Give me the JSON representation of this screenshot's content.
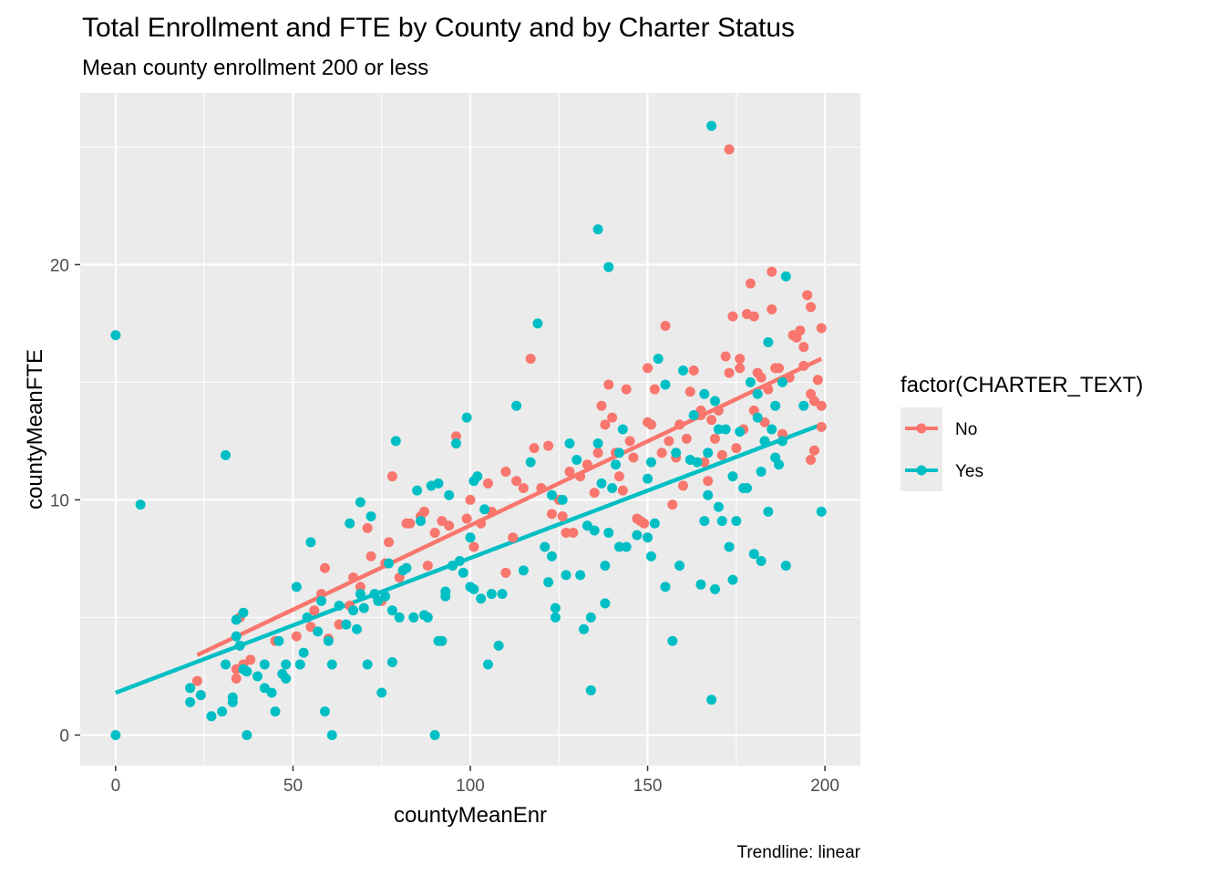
{
  "chart_data": {
    "type": "scatter",
    "title": "Total Enrollment and FTE by County and by Charter Status",
    "subtitle": "Mean county enrollment 200 or less",
    "xlabel": "countyMeanEnr",
    "ylabel": "countyMeanFTE",
    "caption": "Trendline: linear",
    "xlim": [
      -10,
      210
    ],
    "ylim": [
      -1.3,
      27.3
    ],
    "x_ticks": [
      0,
      50,
      100,
      150,
      200
    ],
    "y_ticks": [
      0,
      10,
      20
    ],
    "x_tick_labels": [
      "0",
      "50",
      "100",
      "150",
      "200"
    ],
    "y_tick_labels": [
      "0",
      "10",
      "20"
    ],
    "grid": true,
    "panel_background": "#ebebeb",
    "legend": {
      "title": "factor(CHARTER_TEXT)",
      "placement": "right"
    },
    "series": [
      {
        "name": "No",
        "color": "#f8766d",
        "trend": {
          "x": [
            23,
            199
          ],
          "y": [
            3.4,
            16.0
          ]
        },
        "points": [
          [
            23,
            2.3
          ],
          [
            24,
            1.7
          ],
          [
            34,
            2.8
          ],
          [
            34,
            2.4
          ],
          [
            35,
            5.0
          ],
          [
            36,
            3.0
          ],
          [
            38,
            3.2
          ],
          [
            45,
            4.0
          ],
          [
            51,
            4.2
          ],
          [
            55,
            4.6
          ],
          [
            56,
            5.3
          ],
          [
            58,
            6.0
          ],
          [
            59,
            7.1
          ],
          [
            60,
            4.1
          ],
          [
            63,
            4.7
          ],
          [
            66,
            5.5
          ],
          [
            67,
            6.7
          ],
          [
            69,
            6.3
          ],
          [
            71,
            8.8
          ],
          [
            72,
            7.6
          ],
          [
            75,
            5.7
          ],
          [
            76,
            7.3
          ],
          [
            77,
            8.2
          ],
          [
            78,
            11.0
          ],
          [
            80,
            6.7
          ],
          [
            82,
            9.0
          ],
          [
            83,
            9.0
          ],
          [
            86,
            9.3
          ],
          [
            87,
            9.5
          ],
          [
            88,
            7.2
          ],
          [
            90,
            8.6
          ],
          [
            92,
            9.1
          ],
          [
            94,
            8.9
          ],
          [
            96,
            12.7
          ],
          [
            99,
            9.2
          ],
          [
            100,
            10.0
          ],
          [
            101,
            8.0
          ],
          [
            103,
            9.0
          ],
          [
            105,
            10.7
          ],
          [
            106,
            9.5
          ],
          [
            110,
            11.2
          ],
          [
            110,
            6.9
          ],
          [
            112,
            8.4
          ],
          [
            113,
            10.8
          ],
          [
            115,
            10.5
          ],
          [
            117,
            16.0
          ],
          [
            118,
            12.2
          ],
          [
            120,
            10.5
          ],
          [
            122,
            12.3
          ],
          [
            123,
            9.4
          ],
          [
            125,
            10.0
          ],
          [
            126,
            9.3
          ],
          [
            127,
            8.6
          ],
          [
            128,
            11.2
          ],
          [
            129,
            8.6
          ],
          [
            131,
            11.0
          ],
          [
            133,
            11.5
          ],
          [
            135,
            10.3
          ],
          [
            136,
            12.0
          ],
          [
            137,
            14.0
          ],
          [
            138,
            13.2
          ],
          [
            139,
            14.9
          ],
          [
            140,
            13.5
          ],
          [
            141,
            12.0
          ],
          [
            142,
            11.0
          ],
          [
            143,
            10.4
          ],
          [
            144,
            14.7
          ],
          [
            145,
            12.5
          ],
          [
            146,
            11.8
          ],
          [
            147,
            9.2
          ],
          [
            148,
            9.1
          ],
          [
            149,
            9.0
          ],
          [
            150,
            15.6
          ],
          [
            151,
            13.2
          ],
          [
            152,
            14.7
          ],
          [
            154,
            12.0
          ],
          [
            155,
            17.4
          ],
          [
            156,
            12.5
          ],
          [
            157,
            9.8
          ],
          [
            158,
            11.8
          ],
          [
            159,
            13.2
          ],
          [
            160,
            10.6
          ],
          [
            161,
            12.6
          ],
          [
            162,
            14.6
          ],
          [
            163,
            15.5
          ],
          [
            164,
            13.6
          ],
          [
            165,
            13.8
          ],
          [
            166,
            11.6
          ],
          [
            167,
            10.8
          ],
          [
            168,
            13.4
          ],
          [
            169,
            12.6
          ],
          [
            170,
            13.8
          ],
          [
            171,
            11.9
          ],
          [
            172,
            16.1
          ],
          [
            173,
            15.4
          ],
          [
            174,
            17.8
          ],
          [
            175,
            12.2
          ],
          [
            176,
            15.6
          ],
          [
            177,
            13.0
          ],
          [
            178,
            17.9
          ],
          [
            179,
            19.2
          ],
          [
            180,
            13.8
          ],
          [
            181,
            15.4
          ],
          [
            182,
            15.2
          ],
          [
            183,
            13.3
          ],
          [
            184,
            14.7
          ],
          [
            185,
            18.1
          ],
          [
            186,
            15.6
          ],
          [
            187,
            15.6
          ],
          [
            188,
            12.8
          ],
          [
            190,
            15.2
          ],
          [
            191,
            17.0
          ],
          [
            192,
            16.9
          ],
          [
            193,
            17.2
          ],
          [
            194,
            15.7
          ],
          [
            195,
            18.7
          ],
          [
            196,
            14.5
          ],
          [
            197,
            14.2
          ],
          [
            198,
            15.1
          ],
          [
            199,
            14.0
          ],
          [
            199,
            17.3
          ],
          [
            199,
            13.1
          ],
          [
            173,
            24.9
          ],
          [
            185,
            19.7
          ],
          [
            194,
            16.5
          ],
          [
            196,
            18.2
          ],
          [
            197,
            12.1
          ],
          [
            196,
            11.7
          ],
          [
            180,
            17.8
          ],
          [
            176,
            16.0
          ],
          [
            150,
            13.3
          ],
          [
            165,
            13.6
          ]
        ]
      },
      {
        "name": "Yes",
        "color": "#00bfc4",
        "trend": {
          "x": [
            0,
            199
          ],
          "y": [
            1.8,
            13.2
          ]
        },
        "points": [
          [
            0,
            17.0
          ],
          [
            0,
            0.0
          ],
          [
            7,
            9.8
          ],
          [
            21,
            1.4
          ],
          [
            21,
            2.0
          ],
          [
            24,
            1.7
          ],
          [
            27,
            0.8
          ],
          [
            30,
            1.0
          ],
          [
            31,
            3.0
          ],
          [
            31,
            11.9
          ],
          [
            33,
            1.6
          ],
          [
            33,
            1.4
          ],
          [
            34,
            4.9
          ],
          [
            34,
            4.2
          ],
          [
            35,
            3.8
          ],
          [
            36,
            5.2
          ],
          [
            36,
            2.8
          ],
          [
            37,
            2.7
          ],
          [
            37,
            0.0
          ],
          [
            40,
            2.5
          ],
          [
            42,
            3.0
          ],
          [
            42,
            2.0
          ],
          [
            44,
            1.8
          ],
          [
            45,
            1.0
          ],
          [
            46,
            4.0
          ],
          [
            47,
            2.6
          ],
          [
            48,
            3.0
          ],
          [
            48,
            2.4
          ],
          [
            51,
            6.3
          ],
          [
            52,
            3.0
          ],
          [
            53,
            3.5
          ],
          [
            54,
            5.0
          ],
          [
            55,
            8.2
          ],
          [
            57,
            4.4
          ],
          [
            58,
            5.7
          ],
          [
            59,
            1.0
          ],
          [
            60,
            4.0
          ],
          [
            61,
            3.0
          ],
          [
            61,
            0.0
          ],
          [
            63,
            5.5
          ],
          [
            65,
            4.7
          ],
          [
            66,
            9.0
          ],
          [
            67,
            5.3
          ],
          [
            68,
            4.5
          ],
          [
            69,
            6.0
          ],
          [
            69,
            9.9
          ],
          [
            70,
            5.4
          ],
          [
            71,
            3.0
          ],
          [
            72,
            9.3
          ],
          [
            73,
            6.0
          ],
          [
            74,
            5.7
          ],
          [
            75,
            1.8
          ],
          [
            76,
            5.9
          ],
          [
            77,
            7.3
          ],
          [
            78,
            5.3
          ],
          [
            78,
            3.1
          ],
          [
            79,
            12.5
          ],
          [
            80,
            5.0
          ],
          [
            81,
            7.0
          ],
          [
            82,
            7.1
          ],
          [
            84,
            5.0
          ],
          [
            85,
            10.4
          ],
          [
            86,
            9.1
          ],
          [
            87,
            5.1
          ],
          [
            88,
            5.0
          ],
          [
            89,
            10.6
          ],
          [
            90,
            0.0
          ],
          [
            91,
            4.0
          ],
          [
            91,
            10.7
          ],
          [
            92,
            4.0
          ],
          [
            93,
            6.1
          ],
          [
            93,
            5.9
          ],
          [
            94,
            10.2
          ],
          [
            95,
            7.2
          ],
          [
            96,
            12.4
          ],
          [
            97,
            7.4
          ],
          [
            98,
            6.9
          ],
          [
            99,
            13.5
          ],
          [
            100,
            8.4
          ],
          [
            100,
            6.3
          ],
          [
            101,
            6.2
          ],
          [
            101,
            10.8
          ],
          [
            102,
            11.0
          ],
          [
            103,
            5.8
          ],
          [
            104,
            9.6
          ],
          [
            105,
            3.0
          ],
          [
            106,
            6.0
          ],
          [
            108,
            3.8
          ],
          [
            109,
            6.0
          ],
          [
            113,
            14.0
          ],
          [
            115,
            7.0
          ],
          [
            117,
            11.6
          ],
          [
            119,
            17.5
          ],
          [
            121,
            8.0
          ],
          [
            122,
            6.5
          ],
          [
            123,
            10.2
          ],
          [
            123,
            7.6
          ],
          [
            124,
            5.0
          ],
          [
            124,
            5.4
          ],
          [
            126,
            10.0
          ],
          [
            127,
            6.8
          ],
          [
            128,
            12.4
          ],
          [
            130,
            11.7
          ],
          [
            131,
            6.8
          ],
          [
            132,
            4.5
          ],
          [
            133,
            8.9
          ],
          [
            134,
            5.0
          ],
          [
            134,
            1.9
          ],
          [
            135,
            8.7
          ],
          [
            136,
            12.4
          ],
          [
            136,
            21.5
          ],
          [
            137,
            10.7
          ],
          [
            138,
            5.6
          ],
          [
            138,
            7.2
          ],
          [
            139,
            19.9
          ],
          [
            139,
            8.6
          ],
          [
            140,
            10.5
          ],
          [
            141,
            11.5
          ],
          [
            142,
            8.0
          ],
          [
            142,
            12.0
          ],
          [
            143,
            13.0
          ],
          [
            144,
            8.0
          ],
          [
            147,
            8.5
          ],
          [
            150,
            10.9
          ],
          [
            150,
            8.4
          ],
          [
            151,
            11.6
          ],
          [
            151,
            7.6
          ],
          [
            152,
            9.0
          ],
          [
            153,
            16.0
          ],
          [
            155,
            14.9
          ],
          [
            155,
            6.3
          ],
          [
            157,
            4.0
          ],
          [
            158,
            12.0
          ],
          [
            159,
            7.2
          ],
          [
            160,
            15.5
          ],
          [
            162,
            11.7
          ],
          [
            163,
            13.6
          ],
          [
            164,
            11.6
          ],
          [
            165,
            6.4
          ],
          [
            166,
            9.1
          ],
          [
            166,
            14.5
          ],
          [
            167,
            10.2
          ],
          [
            167,
            12.0
          ],
          [
            168,
            1.5
          ],
          [
            168,
            25.9
          ],
          [
            169,
            6.2
          ],
          [
            169,
            14.2
          ],
          [
            170,
            13.0
          ],
          [
            170,
            9.7
          ],
          [
            171,
            9.1
          ],
          [
            172,
            13.0
          ],
          [
            173,
            8.0
          ],
          [
            174,
            6.6
          ],
          [
            174,
            11.0
          ],
          [
            175,
            9.1
          ],
          [
            176,
            12.9
          ],
          [
            177,
            10.5
          ],
          [
            178,
            10.5
          ],
          [
            179,
            15.0
          ],
          [
            180,
            7.7
          ],
          [
            181,
            13.5
          ],
          [
            182,
            7.4
          ],
          [
            183,
            12.5
          ],
          [
            184,
            16.7
          ],
          [
            184,
            9.5
          ],
          [
            185,
            13.0
          ],
          [
            186,
            11.8
          ],
          [
            187,
            11.5
          ],
          [
            188,
            12.5
          ],
          [
            188,
            15.0
          ],
          [
            189,
            7.2
          ],
          [
            189,
            19.5
          ],
          [
            194,
            14.0
          ],
          [
            199,
            9.5
          ],
          [
            181,
            14.5
          ],
          [
            182,
            11.2
          ],
          [
            186,
            14.0
          ]
        ]
      }
    ]
  }
}
